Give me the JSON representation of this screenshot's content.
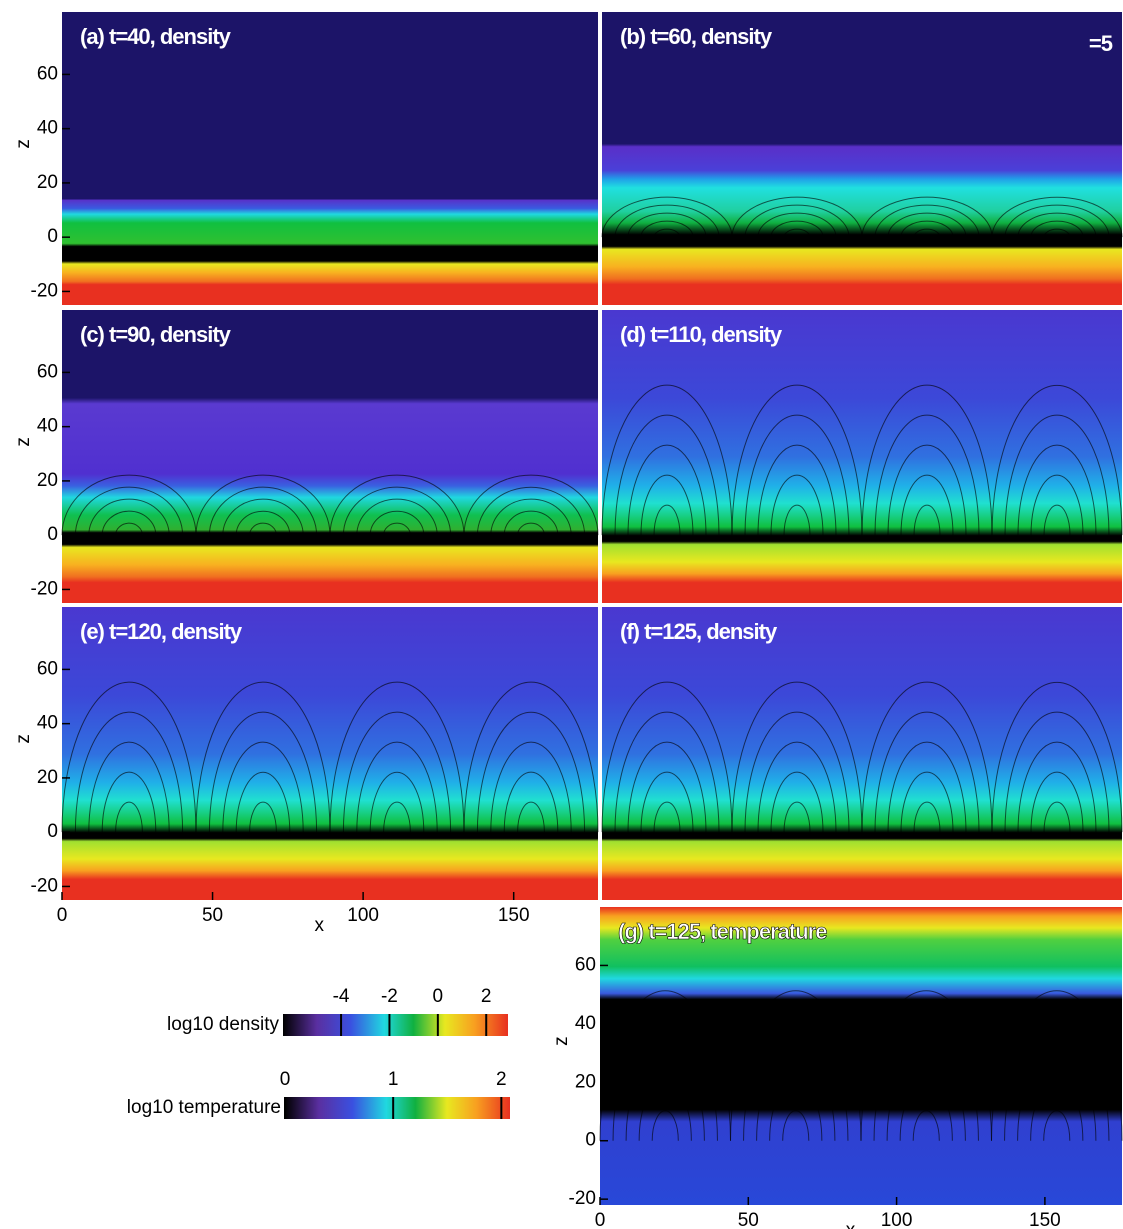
{
  "chart_data": [
    {
      "type": "heatmap",
      "title": "(a) t=40, density",
      "xlim": [
        0,
        178
      ],
      "ylim": [
        -25,
        83
      ],
      "yticks": [
        -20,
        0,
        20,
        40,
        60
      ],
      "ylabel": "z"
    },
    {
      "type": "heatmap",
      "title": "(b) t=60, density",
      "annotation": "=5",
      "xlim": [
        0,
        173
      ],
      "ylim": [
        -25,
        83
      ]
    },
    {
      "type": "heatmap",
      "title": "(c) t=90, density",
      "xlim": [
        0,
        178
      ],
      "ylim": [
        -25,
        83
      ],
      "yticks": [
        -20,
        0,
        20,
        40,
        60
      ],
      "ylabel": "z"
    },
    {
      "type": "heatmap",
      "title": "(d) t=110, density",
      "xlim": [
        0,
        173
      ],
      "ylim": [
        -25,
        83
      ]
    },
    {
      "type": "heatmap",
      "title": "(e) t=120, density",
      "xlim": [
        0,
        178
      ],
      "ylim": [
        -25,
        83
      ],
      "xticks": [
        0,
        50,
        100,
        150
      ],
      "yticks": [
        -20,
        0,
        20,
        40,
        60
      ],
      "xlabel": "x",
      "ylabel": "z"
    },
    {
      "type": "heatmap",
      "title": "(f) t=125, density",
      "xlim": [
        0,
        173
      ],
      "ylim": [
        -25,
        83
      ]
    },
    {
      "type": "heatmap",
      "title": "(g) t=125, temperature",
      "xlim": [
        0,
        176
      ],
      "ylim": [
        -22,
        80
      ],
      "xticks": [
        0,
        50,
        100,
        150
      ],
      "yticks": [
        -20,
        0,
        20,
        40,
        60
      ],
      "xlabel": "x",
      "ylabel": "z"
    },
    {
      "type": "colorbar",
      "label": "log10 density",
      "lim": [
        -6.4,
        2.9
      ],
      "ticks": [
        -4,
        -2,
        0,
        2
      ]
    },
    {
      "type": "colorbar",
      "label": "log10 temperature",
      "lim": [
        0,
        2.08
      ],
      "ticks": [
        0,
        1,
        2
      ]
    }
  ]
}
